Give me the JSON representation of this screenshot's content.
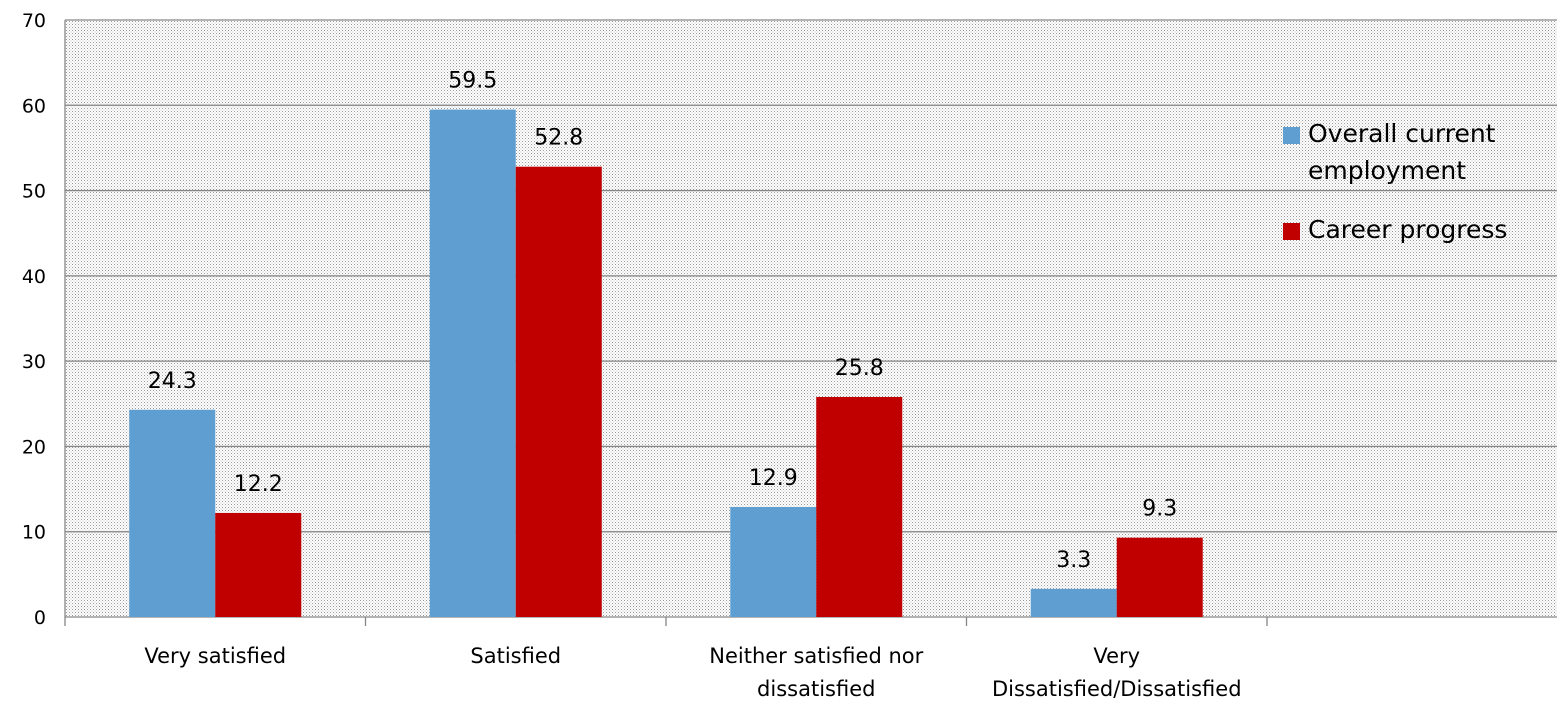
{
  "chart_data": {
    "type": "bar",
    "categories": [
      [
        "Very satisfied"
      ],
      [
        "Satisfied"
      ],
      [
        "Neither satisfied nor",
        "dissatisfied"
      ],
      [
        "Very",
        "Dissatisfied/Dissatisfied"
      ]
    ],
    "series": [
      {
        "name": "Overall current employment",
        "legend_lines": [
          "Overall current",
          "employment"
        ],
        "values": [
          24.3,
          59.5,
          12.9,
          3.3
        ],
        "color": "#5f9ed1"
      },
      {
        "name": "Career progress",
        "legend_lines": [
          "Career progress"
        ],
        "values": [
          12.2,
          52.8,
          25.8,
          9.3
        ],
        "color": "#c00000"
      }
    ],
    "ylim": [
      0,
      70
    ],
    "yticks": [
      0,
      10,
      20,
      30,
      40,
      50,
      60,
      70
    ],
    "grid": true,
    "legend_position": "top-right",
    "title": "",
    "xlabel": "",
    "ylabel": "",
    "plot_background": "#e6e6e6",
    "gridline_color": "#8a8a8a"
  }
}
